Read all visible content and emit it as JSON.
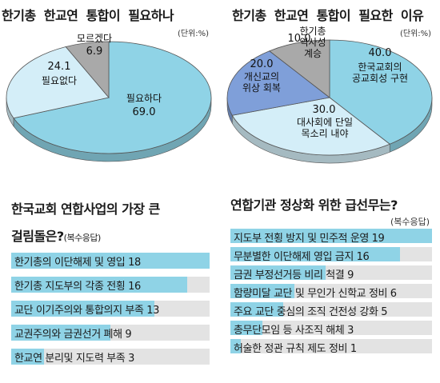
{
  "chart_data": [
    {
      "type": "pie",
      "title": "한기총 한교연 통합이 필요하나",
      "unit": "(단위:%)",
      "slices": [
        {
          "label": "필요하다",
          "value": 69.0,
          "value_text": "69.0",
          "color": "#8fd3e6"
        },
        {
          "label": "필요없다",
          "value": 24.1,
          "value_text": "24.1",
          "color": "#d4eef8"
        },
        {
          "label": "모르겠다",
          "value": 6.9,
          "value_text": "6.9",
          "color": "#a9a9a9"
        }
      ]
    },
    {
      "type": "pie",
      "title": "한기총 한교연 통합이 필요한 이유",
      "unit": "(단위:%)",
      "slices": [
        {
          "label": "한국교회의 공교회성 구현",
          "lines": [
            "한국교회의",
            "공교회성 구현"
          ],
          "value": 40.0,
          "value_text": "40.0",
          "color": "#8fd3e6"
        },
        {
          "label": "대사회에 단일 목소리 내야",
          "lines": [
            "대사회에 단일",
            "목소리 내야"
          ],
          "value": 30.0,
          "value_text": "30.0",
          "color": "#d4eef8"
        },
        {
          "label": "개신교의 위상 회복",
          "lines": [
            "개신교의",
            "위상 회복"
          ],
          "value": 20.0,
          "value_text": "20.0",
          "color": "#7f9fd9"
        },
        {
          "label": "한기총 역사성 계승",
          "lines": [
            "한기총",
            "역사성",
            "계승"
          ],
          "value": 10.0,
          "value_text": "10.0",
          "color": "#a9a9a9"
        }
      ]
    },
    {
      "type": "bar",
      "title": "한국교회 연합사업의 가장 큰 걸림돌은?",
      "title_line1": "한국교회 연합사업의 가장 큰",
      "title_line2": "걸림돌은?",
      "note": "(복수응답)",
      "xlim": [
        0,
        18
      ],
      "items": [
        {
          "label": "한기총의 이단해제 및 영입 18",
          "value": 18
        },
        {
          "label": "한기총 지도부의 각종 전횡 16",
          "value": 16
        },
        {
          "label": "교단 이기주의와 통합의지 부족 13",
          "value": 13
        },
        {
          "label": "교권주의와 금권선거 폐해 9",
          "value": 9
        },
        {
          "label": "한교연 분리및 지도력 부족 3",
          "value": 3
        }
      ]
    },
    {
      "type": "bar",
      "title": "연합기관 정상화 위한 급선무는?",
      "note": "(복수응답)",
      "xlim": [
        0,
        19
      ],
      "items": [
        {
          "label": "지도부 전횡 방지 및 민주적 운영 19",
          "value": 19
        },
        {
          "label": "무분별한 이단해제 영입 금지 16",
          "value": 16
        },
        {
          "label": "금권 부정선거등 비리 척결 9",
          "value": 9
        },
        {
          "label": "함량미달 교단 및 무인가 신학교 정비 6",
          "value": 6
        },
        {
          "label": "주요 교단 중심의 조직 건전성 강화 5",
          "value": 5
        },
        {
          "label": "총무단모임 등 사조직 해체 3",
          "value": 3
        },
        {
          "label": "허술한 정관 규칙 제도 정비 1",
          "value": 1
        }
      ]
    }
  ]
}
